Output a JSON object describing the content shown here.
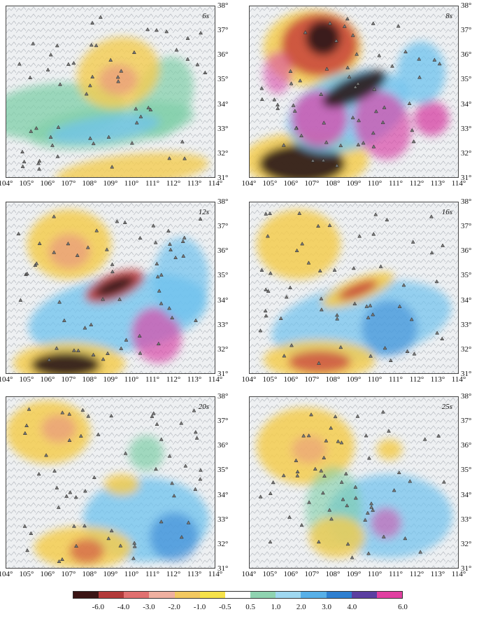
{
  "map": {
    "periods": [
      "6s",
      "8s",
      "12s",
      "16s",
      "20s",
      "25s"
    ],
    "lat_labels": [
      "38°",
      "37°",
      "36°",
      "35°",
      "34°",
      "33°",
      "32°",
      "31°"
    ],
    "lon_labels": [
      "104°",
      "105°",
      "106°",
      "107°",
      "108°",
      "109°",
      "110°",
      "111°",
      "112°",
      "113°",
      "114°"
    ],
    "lon_range": [
      104,
      114
    ],
    "lat_range": [
      31,
      38
    ]
  },
  "colorbar": {
    "labels": [
      "-6.0",
      "-4.0",
      "-3.0",
      "-2.0",
      "-1.0",
      "-0.5",
      "0.5",
      "1.0",
      "2.0",
      "3.0",
      "4.0",
      "6.0"
    ],
    "colors": [
      "#3a1414",
      "#b23a3a",
      "#e07070",
      "#efb0a0",
      "#f2c860",
      "#f6e24a",
      "#ffffff",
      "#8fd3b0",
      "#9fd8f0",
      "#58b0e8",
      "#2e7fd0",
      "#5b3fa0",
      "#e040a0"
    ],
    "low_color": "#2a1a1a",
    "neg_strong": "#c63a3a",
    "neg_mid": "#e89080",
    "neg_weak": "#f4cc50",
    "pos_weak": "#7fcfa8",
    "pos_mid": "#6ec2ee",
    "pos_strong": "#2f7fd2",
    "pos_max": "#d84aa8"
  }
}
